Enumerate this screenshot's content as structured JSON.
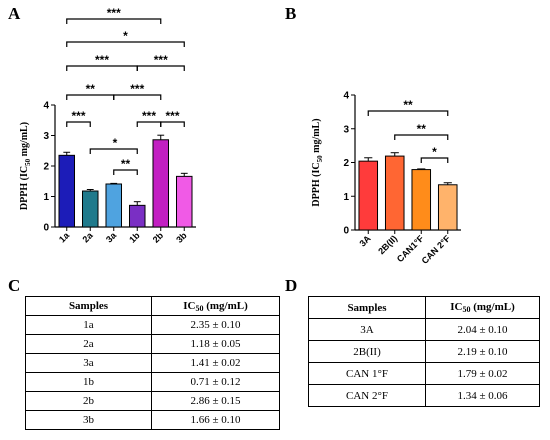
{
  "panels": {
    "a": "A",
    "b": "B",
    "c": "C",
    "d": "D"
  },
  "colors": {
    "1a": "#1c1cb8",
    "2a": "#1f7a8c",
    "3a": "#4fa3e0",
    "1b": "#7a2fc4",
    "2b": "#c21fc2",
    "3b": "#f05ae6",
    "3A": "#ff3b3b",
    "2B(II)": "#ff6633",
    "CAN1F": "#ff8c1a",
    "CAN2F": "#ffb36b"
  },
  "chart_data": [
    {
      "type": "bar",
      "ylabel": "DPPH (IC50 mg/mL)",
      "ylabel_main": "DPPH (IC",
      "ylabel_sub": "50",
      "ylabel_tail": " mg/mL)",
      "categories": [
        "1a",
        "2a",
        "3a",
        "1b",
        "2b",
        "3b"
      ],
      "values": [
        2.35,
        1.18,
        1.41,
        0.71,
        2.86,
        1.66
      ],
      "errors": [
        0.1,
        0.05,
        0.02,
        0.12,
        0.15,
        0.1
      ],
      "ylim": [
        0,
        4
      ],
      "yticks": [
        "0",
        "1",
        "2",
        "3",
        "4"
      ],
      "significance": [
        {
          "from": 0,
          "to": 4,
          "label": "***"
        },
        {
          "from": 0,
          "to": 5,
          "label": "*"
        },
        {
          "from": 0,
          "to": 3,
          "label": "***"
        },
        {
          "from": 3,
          "to": 5,
          "label": "***"
        },
        {
          "from": 0,
          "to": 2,
          "label": "**"
        },
        {
          "from": 2,
          "to": 4,
          "label": "***"
        },
        {
          "from": 0,
          "to": 1,
          "label": "***"
        },
        {
          "from": 3,
          "to": 4,
          "label": "***"
        },
        {
          "from": 4,
          "to": 5,
          "label": "***"
        },
        {
          "from": 1,
          "to": 3,
          "label": "*"
        },
        {
          "from": 2,
          "to": 3,
          "label": "**"
        }
      ]
    },
    {
      "type": "bar",
      "ylabel": "DPPH (IC50 mg/mL)",
      "ylabel_main": "DPPH (IC",
      "ylabel_sub": "50",
      "ylabel_tail": " mg/mL)",
      "categories": [
        "3A",
        "2B(II)",
        "CAN1°F",
        "CAN 2°F"
      ],
      "values": [
        2.04,
        2.19,
        1.79,
        1.34
      ],
      "errors": [
        0.1,
        0.1,
        0.02,
        0.06
      ],
      "ylim": [
        0,
        4
      ],
      "yticks": [
        "0",
        "1",
        "2",
        "3",
        "4"
      ],
      "significance": [
        {
          "from": 0,
          "to": 3,
          "label": "**"
        },
        {
          "from": 1,
          "to": 3,
          "label": "**"
        },
        {
          "from": 2,
          "to": 3,
          "label": "*"
        }
      ]
    }
  ],
  "table_c": {
    "header_samples": "Samples",
    "header_ic": "IC",
    "header_ic_sub": "50",
    "header_ic_tail": " (mg/mL)",
    "rows": [
      {
        "sample": "1a",
        "value": "2.35 ± 0.10"
      },
      {
        "sample": "2a",
        "value": "1.18 ± 0.05"
      },
      {
        "sample": "3a",
        "value": "1.41 ± 0.02"
      },
      {
        "sample": "1b",
        "value": "0.71 ± 0.12"
      },
      {
        "sample": "2b",
        "value": "2.86 ± 0.15"
      },
      {
        "sample": "3b",
        "value": "1.66 ± 0.10"
      }
    ]
  },
  "table_d": {
    "header_samples": "Samples",
    "header_ic": "IC",
    "header_ic_sub": "50",
    "header_ic_tail": " (mg/mL)",
    "rows": [
      {
        "sample": "3A",
        "value": "2.04 ± 0.10"
      },
      {
        "sample": "2B(II)",
        "value": "2.19 ± 0.10"
      },
      {
        "sample": "CAN 1°F",
        "value": "1.79 ± 0.02"
      },
      {
        "sample": "CAN 2°F",
        "value": "1.34 ± 0.06"
      }
    ]
  }
}
